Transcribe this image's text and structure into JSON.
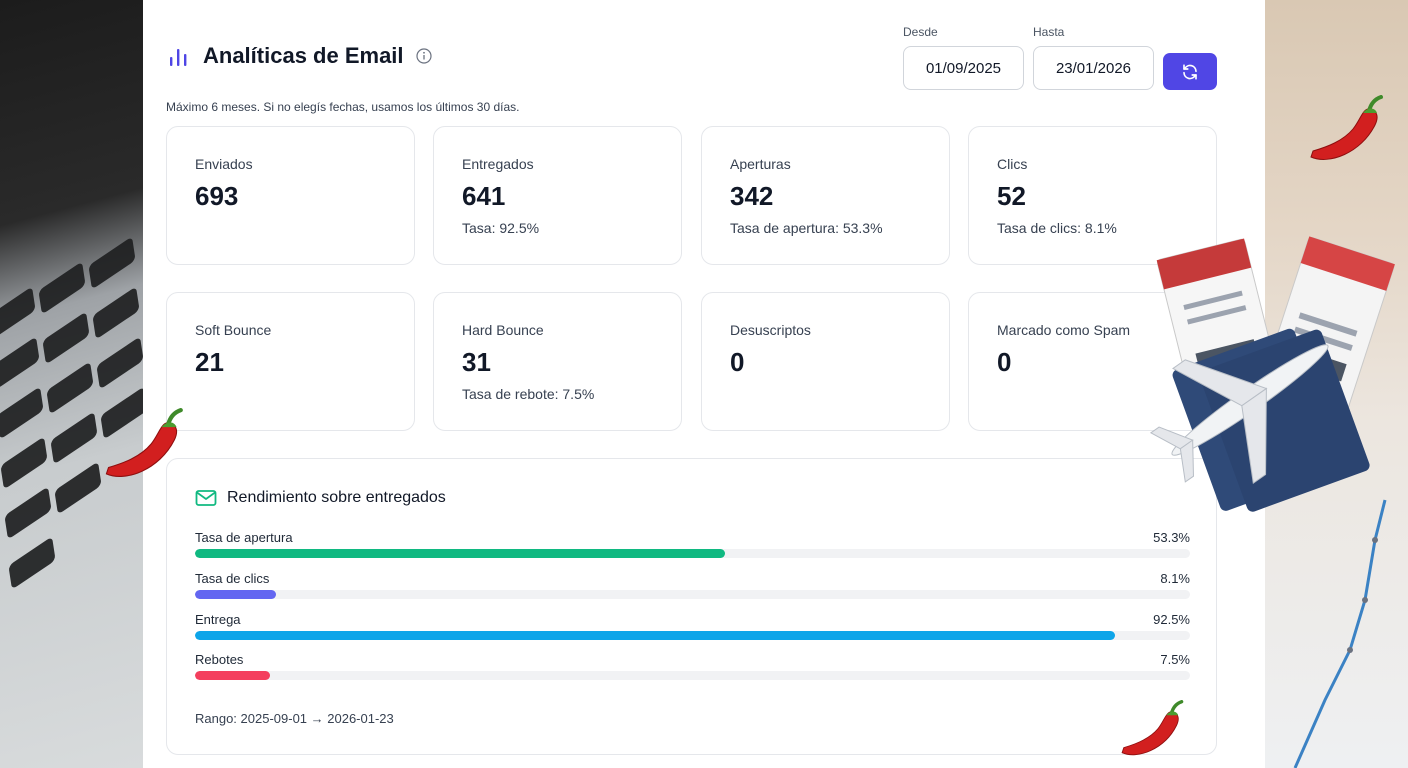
{
  "header": {
    "title": "Analíticas de Email",
    "subtitle": "Máximo 6 meses. Si no elegís fechas, usamos los últimos 30 días."
  },
  "filters": {
    "from_label": "Desde",
    "from_value": "01/09/2025",
    "to_label": "Hasta",
    "to_value": "23/01/2026"
  },
  "stats": [
    {
      "label": "Enviados",
      "value": "693",
      "rate": ""
    },
    {
      "label": "Entregados",
      "value": "641",
      "rate": "Tasa: 92.5%"
    },
    {
      "label": "Aperturas",
      "value": "342",
      "rate": "Tasa de apertura: 53.3%"
    },
    {
      "label": "Clics",
      "value": "52",
      "rate": "Tasa de clics: 8.1%"
    },
    {
      "label": "Soft Bounce",
      "value": "21",
      "rate": ""
    },
    {
      "label": "Hard Bounce",
      "value": "31",
      "rate": "Tasa de rebote: 7.5%"
    },
    {
      "label": "Desuscriptos",
      "value": "0",
      "rate": ""
    },
    {
      "label": "Marcado como Spam",
      "value": "0",
      "rate": ""
    }
  ],
  "performance": {
    "title": "Rendimiento sobre entregados",
    "metrics": [
      {
        "label": "Tasa de apertura",
        "value_text": "53.3%",
        "percent": 53.3,
        "color": "#10b981"
      },
      {
        "label": "Tasa de clics",
        "value_text": "8.1%",
        "percent": 8.1,
        "color": "#6366f1"
      },
      {
        "label": "Entrega",
        "value_text": "92.5%",
        "percent": 92.5,
        "color": "#0ea5e9"
      },
      {
        "label": "Rebotes",
        "value_text": "7.5%",
        "percent": 7.5,
        "color": "#f43f5e"
      }
    ],
    "range": "Rango: 2025-09-01 → 2026-01-23"
  },
  "colors": {
    "accent": "#5046e5",
    "title_icon": "#4f46e5",
    "mail_icon": "#10b981"
  },
  "icons": {
    "title": "bar-chart-icon",
    "info": "info-icon",
    "refresh": "refresh-icon",
    "mail": "mail-icon"
  }
}
